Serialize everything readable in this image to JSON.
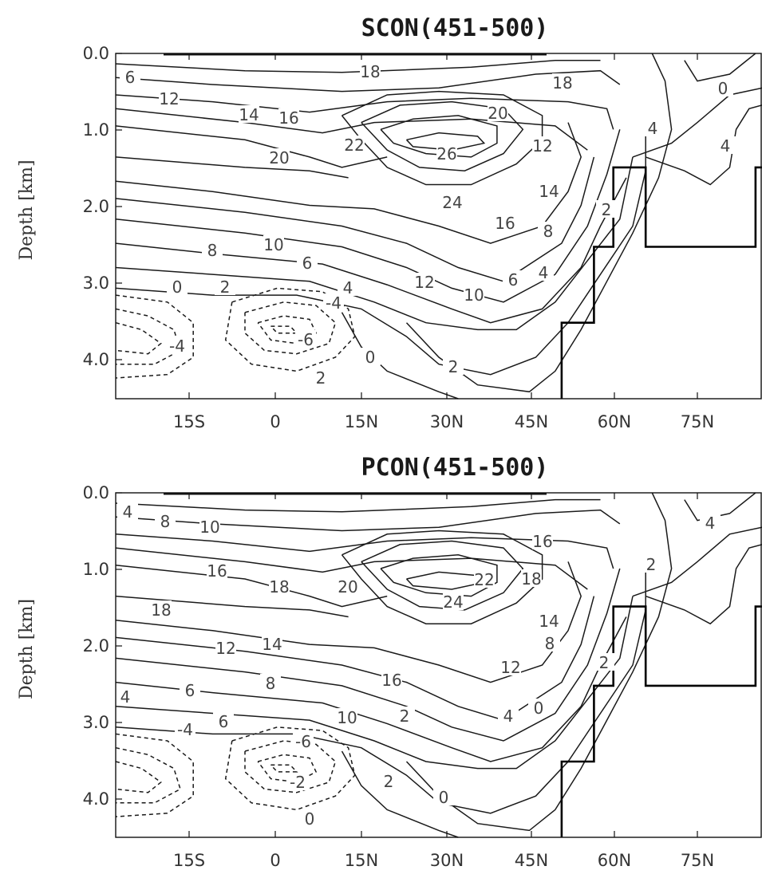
{
  "chart_data": [
    {
      "type": "contour",
      "title": "SCON(451-500)",
      "ylabel": "Depth [km]",
      "xlabel": "",
      "x_ticks": [
        "15S",
        "0",
        "15N",
        "30N",
        "45N",
        "60N",
        "75N"
      ],
      "y_ticks": [
        "0.0",
        "1.0",
        "2.0",
        "3.0",
        "4.0"
      ],
      "xlim": [
        -30,
        88
      ],
      "ylim": [
        4.5,
        0.0
      ],
      "grid": false,
      "contour_labels": [
        "6",
        "12",
        "14",
        "16",
        "18",
        "20",
        "22",
        "26",
        "20",
        "18",
        "12",
        "14",
        "24",
        "16",
        "8",
        "2",
        "4",
        "10",
        "8",
        "6",
        "4",
        "12",
        "10",
        "6",
        "4",
        "0",
        "2",
        "-4",
        "-6",
        "-4",
        "2",
        "0",
        "2",
        "0",
        "4",
        "2"
      ]
    },
    {
      "type": "contour",
      "title": "PCON(451-500)",
      "ylabel": "Depth [km]",
      "xlabel": "",
      "x_ticks": [
        "15S",
        "0",
        "15N",
        "30N",
        "45N",
        "60N",
        "75N"
      ],
      "y_ticks": [
        "0.0",
        "1.0",
        "2.0",
        "3.0",
        "4.0"
      ],
      "xlim": [
        -30,
        88
      ],
      "ylim": [
        4.5,
        0.0
      ],
      "grid": false,
      "contour_labels": [
        "4",
        "8",
        "10",
        "16",
        "16",
        "18",
        "20",
        "22",
        "18",
        "18",
        "24",
        "14",
        "12",
        "14",
        "8",
        "12",
        "2",
        "16",
        "4",
        "6",
        "8",
        "6",
        "10",
        "2",
        "4",
        "0",
        "-4",
        "-6",
        "-2",
        "0",
        "2",
        "0",
        "4",
        "2"
      ]
    }
  ]
}
